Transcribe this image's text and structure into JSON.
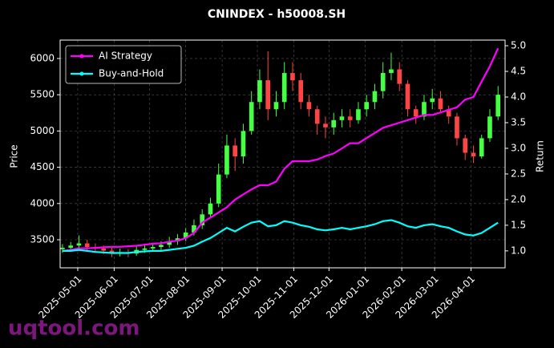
{
  "chart_data": {
    "type": "candlestick",
    "title": "CNINDEX - h50008.SH",
    "y_label": "Price",
    "y2_label": "Return",
    "watermark": "uqtool.com",
    "x": [
      "2025-04-18",
      "2025-04-25",
      "2025-05-02",
      "2025-05-09",
      "2025-05-16",
      "2025-05-23",
      "2025-05-30",
      "2025-06-06",
      "2025-06-13",
      "2025-06-20",
      "2025-06-27",
      "2025-07-04",
      "2025-07-11",
      "2025-07-18",
      "2025-07-25",
      "2025-08-01",
      "2025-08-08",
      "2025-08-15",
      "2025-08-22",
      "2025-08-29",
      "2025-09-05",
      "2025-09-12",
      "2025-09-19",
      "2025-09-26",
      "2025-10-03",
      "2025-10-10",
      "2025-10-17",
      "2025-10-24",
      "2025-10-31",
      "2025-11-07",
      "2025-11-14",
      "2025-11-21",
      "2025-11-28",
      "2025-12-05",
      "2025-12-12",
      "2025-12-19",
      "2025-12-26",
      "2026-01-02",
      "2026-01-09",
      "2026-01-16",
      "2026-01-23",
      "2026-01-30",
      "2026-02-06",
      "2026-02-13",
      "2026-02-20",
      "2026-02-27",
      "2026-03-06",
      "2026-03-13",
      "2026-03-20",
      "2026-03-27",
      "2026-04-03",
      "2026-04-10",
      "2026-04-17",
      "2026-04-24"
    ],
    "open": [
      3370,
      3390,
      3420,
      3450,
      3400,
      3380,
      3350,
      3320,
      3330,
      3310,
      3360,
      3380,
      3400,
      3430,
      3480,
      3520,
      3600,
      3700,
      3850,
      4000,
      4400,
      4800,
      4650,
      5000,
      5400,
      5700,
      5300,
      5400,
      5800,
      5700,
      5400,
      5300,
      5100,
      5050,
      5150,
      5200,
      5150,
      5300,
      5400,
      5550,
      5800,
      5850,
      5650,
      5300,
      5200,
      5400,
      5450,
      5300,
      5200,
      4900,
      4700,
      4650,
      4900,
      5200
    ],
    "high": [
      3440,
      3470,
      3560,
      3500,
      3450,
      3420,
      3390,
      3380,
      3370,
      3410,
      3430,
      3450,
      3480,
      3540,
      3580,
      3660,
      3780,
      3920,
      4080,
      4550,
      4950,
      4900,
      5100,
      5550,
      5850,
      6100,
      5550,
      5950,
      5950,
      5800,
      5500,
      5350,
      5200,
      5250,
      5300,
      5300,
      5400,
      5500,
      5650,
      5950,
      6080,
      5950,
      5700,
      5350,
      5500,
      5580,
      5550,
      5350,
      5250,
      4950,
      4800,
      4950,
      5300,
      5620
    ],
    "low": [
      3320,
      3350,
      3370,
      3360,
      3330,
      3300,
      3260,
      3270,
      3260,
      3280,
      3320,
      3340,
      3360,
      3390,
      3430,
      3480,
      3560,
      3650,
      3800,
      3950,
      4350,
      4450,
      4550,
      4950,
      5300,
      5150,
      5200,
      5300,
      5550,
      5300,
      5200,
      4950,
      4900,
      4950,
      5050,
      5050,
      5100,
      5200,
      5300,
      5450,
      5700,
      5550,
      5200,
      5100,
      5150,
      5300,
      5250,
      5100,
      4800,
      4600,
      4560,
      4620,
      4850,
      5150
    ],
    "close": [
      3390,
      3420,
      3450,
      3400,
      3380,
      3350,
      3320,
      3330,
      3310,
      3360,
      3380,
      3400,
      3430,
      3480,
      3520,
      3600,
      3700,
      3850,
      4000,
      4400,
      4800,
      4650,
      5000,
      5400,
      5700,
      5300,
      5400,
      5800,
      5700,
      5400,
      5300,
      5100,
      5050,
      5150,
      5200,
      5150,
      5300,
      5400,
      5550,
      5800,
      5850,
      5650,
      5300,
      5200,
      5400,
      5450,
      5300,
      5200,
      4900,
      4700,
      4650,
      4900,
      5200,
      5500
    ],
    "up_color": "#44ff44",
    "down_color": "#ff4444",
    "series": [
      {
        "name": "AI Strategy",
        "color": "#ff00ff",
        "axis": "y2",
        "values": [
          1.0,
          1.02,
          1.05,
          1.05,
          1.06,
          1.07,
          1.08,
          1.08,
          1.09,
          1.1,
          1.12,
          1.14,
          1.15,
          1.18,
          1.2,
          1.25,
          1.35,
          1.55,
          1.65,
          1.75,
          1.85,
          2.0,
          2.1,
          2.2,
          2.28,
          2.28,
          2.35,
          2.6,
          2.75,
          2.75,
          2.75,
          2.78,
          2.85,
          2.9,
          3.0,
          3.1,
          3.1,
          3.2,
          3.3,
          3.4,
          3.45,
          3.5,
          3.55,
          3.6,
          3.65,
          3.65,
          3.7,
          3.75,
          3.8,
          3.95,
          4.0,
          4.3,
          4.6,
          4.95
        ]
      },
      {
        "name": "Buy-and-Hold",
        "color": "#00ffff",
        "axis": "y2",
        "values": [
          1.0,
          1.0,
          1.02,
          1.0,
          0.98,
          0.97,
          0.96,
          0.96,
          0.96,
          0.98,
          0.99,
          1.0,
          1.0,
          1.02,
          1.04,
          1.06,
          1.1,
          1.18,
          1.25,
          1.35,
          1.45,
          1.38,
          1.47,
          1.55,
          1.58,
          1.48,
          1.5,
          1.58,
          1.55,
          1.5,
          1.47,
          1.42,
          1.4,
          1.42,
          1.45,
          1.42,
          1.45,
          1.48,
          1.52,
          1.58,
          1.6,
          1.55,
          1.48,
          1.45,
          1.5,
          1.52,
          1.48,
          1.45,
          1.38,
          1.32,
          1.3,
          1.35,
          1.45,
          1.55
        ]
      }
    ],
    "xlim": [
      "2025-04-16",
      "2026-04-30"
    ],
    "xticks": [
      "2025-05-01",
      "2025-06-01",
      "2025-07-01",
      "2025-08-01",
      "2025-09-01",
      "2025-10-01",
      "2025-11-01",
      "2025-12-01",
      "2026-01-01",
      "2026-02-01",
      "2026-03-01",
      "2026-04-01"
    ],
    "ylim": [
      3113,
      6254
    ],
    "yticks": [
      3500,
      4000,
      4500,
      5000,
      5500,
      6000
    ],
    "y2lim": [
      0.67,
      5.11
    ],
    "y2ticks": [
      {
        "value": 1,
        "label": "1.0"
      },
      1.5,
      {
        "value": 2,
        "label": "2.0"
      },
      2.5,
      {
        "value": 3,
        "label": "3.0"
      },
      3.5,
      {
        "value": 4,
        "label": "4.0"
      },
      4.5,
      {
        "value": 5,
        "label": "5.0"
      }
    ],
    "grid": true,
    "legend": "upper left"
  }
}
